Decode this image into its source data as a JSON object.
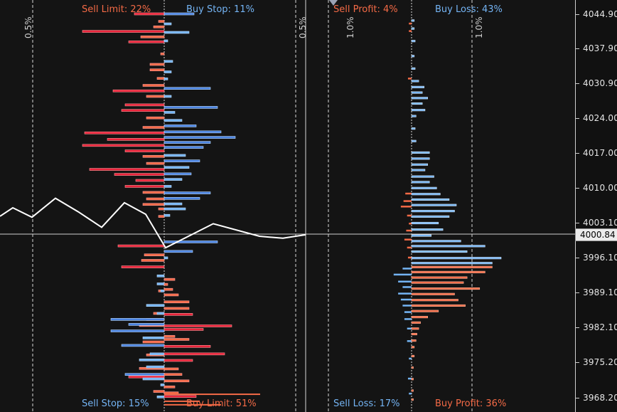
{
  "colors": {
    "sell": "#f46a46",
    "sell_dark": "#e8223a",
    "buy": "#74b4f4",
    "buy_dark": "#4a82e0",
    "price_line": "#ffffff",
    "axis_text": "#e6e6e6"
  },
  "orders": {
    "sell_limit_label": "Sell Limit: 22%",
    "buy_stop_label": "Buy Stop: 11%",
    "sell_stop_label": "Sell Stop: 15%",
    "buy_limit_label": "Buy Limit: 51%"
  },
  "positions": {
    "sell_profit_label": "Sell Profit: 4%",
    "buy_loss_label": "Buy Loss: 43%",
    "sell_loss_label": "Sell Loss: 17%",
    "buy_profit_label": "Buy Profit: 36%"
  },
  "percent_guides": [
    "0.5%",
    "0.5%",
    "1.0%",
    "1.0%"
  ],
  "price_axis": {
    "ticks": [
      "4044.90",
      "4037.90",
      "4030.90",
      "4024.00",
      "4017.00",
      "4010.00",
      "4003.10",
      "3996.10",
      "3989.10",
      "3982.10",
      "3975.20",
      "3968.20"
    ],
    "current_price": "4000.84"
  },
  "price_history": [
    {
      "price": 4004.5
    },
    {
      "price": 4006.2
    },
    {
      "price": 4004.3
    },
    {
      "price": 4008.1
    },
    {
      "price": 4005.4
    },
    {
      "price": 4002.3
    },
    {
      "price": 4007.2
    },
    {
      "price": 4004.9
    },
    {
      "price": 3998.2
    },
    {
      "price": 4003.0
    },
    {
      "price": 4000.5
    },
    {
      "price": 4000.1
    },
    {
      "price": 4000.8
    }
  ],
  "chart_data": {
    "type": "bar",
    "title": "",
    "price_range": [
      3966.7,
      4046.6
    ],
    "order_book": {
      "sell": [
        {
          "price": 4044.9,
          "pct": 0.42
        },
        {
          "price": 4043.4,
          "pct": 0.08
        },
        {
          "price": 4042.3,
          "pct": 0.15
        },
        {
          "price": 4041.4,
          "pct": 1.15
        },
        {
          "price": 4040.3,
          "pct": 0.33
        },
        {
          "price": 4039.3,
          "pct": 0.5
        },
        {
          "price": 4036.9,
          "pct": 0.05
        },
        {
          "price": 4034.8,
          "pct": 0.2
        },
        {
          "price": 4033.7,
          "pct": 0.2
        },
        {
          "price": 4032.0,
          "pct": 0.1
        },
        {
          "price": 4030.6,
          "pct": 0.3
        },
        {
          "price": 4029.5,
          "pct": 0.72
        },
        {
          "price": 4028.4,
          "pct": 0.25
        },
        {
          "price": 4026.7,
          "pct": 0.55
        },
        {
          "price": 4025.6,
          "pct": 0.6
        },
        {
          "price": 4024.1,
          "pct": 0.25
        },
        {
          "price": 4022.2,
          "pct": 0.3
        },
        {
          "price": 4021.1,
          "pct": 1.12
        },
        {
          "price": 4019.8,
          "pct": 0.8
        },
        {
          "price": 4018.6,
          "pct": 1.15
        },
        {
          "price": 4017.5,
          "pct": 0.55
        },
        {
          "price": 4016.4,
          "pct": 0.3
        },
        {
          "price": 4015.0,
          "pct": 0.25
        },
        {
          "price": 4013.8,
          "pct": 1.05
        },
        {
          "price": 4012.8,
          "pct": 0.7
        },
        {
          "price": 4011.6,
          "pct": 0.4
        },
        {
          "price": 4010.4,
          "pct": 0.55
        },
        {
          "price": 4009.2,
          "pct": 0.3
        },
        {
          "price": 4007.9,
          "pct": 0.25
        },
        {
          "price": 4006.8,
          "pct": 0.3
        },
        {
          "price": 4005.9,
          "pct": 0.08
        },
        {
          "price": 4004.4,
          "pct": 0.08
        },
        {
          "price": 3998.5,
          "pct": 0.65
        },
        {
          "price": 3996.7,
          "pct": 0.28
        },
        {
          "price": 3995.6,
          "pct": 0.32
        },
        {
          "price": 3994.3,
          "pct": 0.6
        },
        {
          "price": 3989.5,
          "pct": 0.08
        },
        {
          "price": 3985.0,
          "pct": 0.15
        },
        {
          "price": 3983.8,
          "pct": 0.25
        },
        {
          "price": 3982.6,
          "pct": 0.35
        },
        {
          "price": 3979.3,
          "pct": 0.3
        },
        {
          "price": 3976.7,
          "pct": 0.25
        },
        {
          "price": 3974.0,
          "pct": 0.35
        },
        {
          "price": 3972.3,
          "pct": 0.5
        },
        {
          "price": 3969.4,
          "pct": 0.15
        }
      ],
      "buy": [
        {
          "price": 4044.9,
          "pct": 0.42
        },
        {
          "price": 4042.9,
          "pct": 0.1
        },
        {
          "price": 4041.2,
          "pct": 0.35
        },
        {
          "price": 4039.5,
          "pct": 0.05
        },
        {
          "price": 4035.4,
          "pct": 0.12
        },
        {
          "price": 4033.3,
          "pct": 0.1
        },
        {
          "price": 4031.9,
          "pct": 0.05
        },
        {
          "price": 4030.0,
          "pct": 0.65
        },
        {
          "price": 4028.4,
          "pct": 0.1
        },
        {
          "price": 4026.2,
          "pct": 0.75
        },
        {
          "price": 4025.2,
          "pct": 0.15
        },
        {
          "price": 4023.6,
          "pct": 0.25
        },
        {
          "price": 4022.5,
          "pct": 0.45
        },
        {
          "price": 4021.3,
          "pct": 0.8
        },
        {
          "price": 4020.2,
          "pct": 1.0
        },
        {
          "price": 4019.2,
          "pct": 0.65
        },
        {
          "price": 4018.2,
          "pct": 0.55
        },
        {
          "price": 4016.6,
          "pct": 0.3
        },
        {
          "price": 4015.5,
          "pct": 0.5
        },
        {
          "price": 4014.2,
          "pct": 0.35
        },
        {
          "price": 4012.9,
          "pct": 0.38
        },
        {
          "price": 4011.8,
          "pct": 0.25
        },
        {
          "price": 4010.4,
          "pct": 0.1
        },
        {
          "price": 4009.1,
          "pct": 0.65
        },
        {
          "price": 4008.0,
          "pct": 0.5
        },
        {
          "price": 4006.9,
          "pct": 0.25
        },
        {
          "price": 4005.9,
          "pct": 0.3
        },
        {
          "price": 4004.6,
          "pct": 0.08
        },
        {
          "price": 3999.3,
          "pct": 0.75
        },
        {
          "price": 3997.4,
          "pct": 0.4
        },
        {
          "price": 3996.1,
          "pct": 0.05
        }
      ],
      "sell_lower": [
        {
          "price": 3991.8,
          "pct": 0.15
        },
        {
          "price": 3990.8,
          "pct": 0.05
        },
        {
          "price": 3989.8,
          "pct": 0.12
        },
        {
          "price": 3988.7,
          "pct": 0.2
        },
        {
          "price": 3987.3,
          "pct": 0.35
        },
        {
          "price": 3986.0,
          "pct": 0.35
        },
        {
          "price": 3984.8,
          "pct": 0.4
        },
        {
          "price": 3982.5,
          "pct": 0.95
        },
        {
          "price": 3981.8,
          "pct": 0.55
        },
        {
          "price": 3980.4,
          "pct": 0.15
        },
        {
          "price": 3979.8,
          "pct": 0.35
        },
        {
          "price": 3978.4,
          "pct": 0.65
        },
        {
          "price": 3976.9,
          "pct": 0.85
        },
        {
          "price": 3975.6,
          "pct": 0.4
        },
        {
          "price": 3973.9,
          "pct": 0.2
        },
        {
          "price": 3972.8,
          "pct": 0.25
        },
        {
          "price": 3971.5,
          "pct": 0.35
        },
        {
          "price": 3970.3,
          "pct": 0.15
        },
        {
          "price": 3969.1,
          "pct": 0.2
        },
        {
          "price": 3968.4,
          "pct": 0.45
        }
      ],
      "sell_lower_extra": [
        {
          "price": 3968.9,
          "pct": 1.35
        },
        {
          "price": 3967.5,
          "pct": 0.5
        },
        {
          "price": 3966.8,
          "pct": 0.8
        }
      ],
      "buy_lower": [
        {
          "price": 3992.5,
          "pct": 0.1
        },
        {
          "price": 3990.9,
          "pct": 0.1
        },
        {
          "price": 3989.5,
          "pct": 0.05
        },
        {
          "price": 3986.6,
          "pct": 0.25
        },
        {
          "price": 3985.0,
          "pct": 0.1
        },
        {
          "price": 3983.8,
          "pct": 0.75
        },
        {
          "price": 3982.8,
          "pct": 0.5
        },
        {
          "price": 3981.5,
          "pct": 0.75
        },
        {
          "price": 3980.1,
          "pct": 0.3
        },
        {
          "price": 3978.6,
          "pct": 0.6
        },
        {
          "price": 3976.9,
          "pct": 0.2
        },
        {
          "price": 3975.7,
          "pct": 0.35
        },
        {
          "price": 3974.3,
          "pct": 0.25
        },
        {
          "price": 3972.8,
          "pct": 0.55
        },
        {
          "price": 3971.9,
          "pct": 0.3
        },
        {
          "price": 3970.7,
          "pct": 0.05
        },
        {
          "price": 3968.3,
          "pct": 0.1
        }
      ]
    },
    "position_book": {
      "buy": [
        {
          "price": 4043.6,
          "pct": 0.03
        },
        {
          "price": 4042.0,
          "pct": 0.03
        },
        {
          "price": 4039.5,
          "pct": 0.04
        },
        {
          "price": 4036.5,
          "pct": 0.03
        },
        {
          "price": 4034.0,
          "pct": 0.04
        },
        {
          "price": 4031.5,
          "pct": 0.08
        },
        {
          "price": 4030.3,
          "pct": 0.14
        },
        {
          "price": 4029.2,
          "pct": 0.12
        },
        {
          "price": 4028.1,
          "pct": 0.18
        },
        {
          "price": 4027.0,
          "pct": 0.12
        },
        {
          "price": 4025.7,
          "pct": 0.15
        },
        {
          "price": 4024.5,
          "pct": 0.05
        },
        {
          "price": 4022.0,
          "pct": 0.04
        },
        {
          "price": 4019.5,
          "pct": 0.05
        },
        {
          "price": 4017.2,
          "pct": 0.2
        },
        {
          "price": 4016.0,
          "pct": 0.2
        },
        {
          "price": 4014.8,
          "pct": 0.18
        },
        {
          "price": 4013.7,
          "pct": 0.15
        },
        {
          "price": 4012.4,
          "pct": 0.25
        },
        {
          "price": 4011.3,
          "pct": 0.2
        },
        {
          "price": 4010.1,
          "pct": 0.28
        },
        {
          "price": 4008.9,
          "pct": 0.32
        },
        {
          "price": 4007.8,
          "pct": 0.42
        },
        {
          "price": 4006.7,
          "pct": 0.5
        },
        {
          "price": 4005.5,
          "pct": 0.48
        },
        {
          "price": 4004.4,
          "pct": 0.42
        },
        {
          "price": 4003.1,
          "pct": 0.3
        },
        {
          "price": 4001.8,
          "pct": 0.35
        },
        {
          "price": 4000.6,
          "pct": 0.22
        },
        {
          "price": 3999.5,
          "pct": 0.55
        },
        {
          "price": 3998.5,
          "pct": 0.82
        },
        {
          "price": 3997.4,
          "pct": 0.62
        },
        {
          "price": 3996.1,
          "pct": 1.0
        },
        {
          "price": 3995.1,
          "pct": 0.9
        }
      ],
      "sell": [
        {
          "price": 4043.0,
          "pct": 0.03
        },
        {
          "price": 4041.5,
          "pct": 0.03
        },
        {
          "price": 4032.0,
          "pct": 0.04
        },
        {
          "price": 4009.0,
          "pct": 0.07
        },
        {
          "price": 4007.5,
          "pct": 0.09
        },
        {
          "price": 4006.4,
          "pct": 0.12
        },
        {
          "price": 4004.6,
          "pct": 0.05
        },
        {
          "price": 4003.0,
          "pct": 0.03
        },
        {
          "price": 4001.6,
          "pct": 0.06
        },
        {
          "price": 3999.8,
          "pct": 0.08
        },
        {
          "price": 3998.2,
          "pct": 0.05
        },
        {
          "price": 3996.2,
          "pct": 0.04
        },
        {
          "price": 3994.0,
          "pct": 0.1
        },
        {
          "price": 3992.8,
          "pct": 0.2
        },
        {
          "price": 3991.4,
          "pct": 0.15
        },
        {
          "price": 3990.3,
          "pct": 0.1
        },
        {
          "price": 3989.0,
          "pct": 0.15
        },
        {
          "price": 3987.8,
          "pct": 0.12
        },
        {
          "price": 3986.6,
          "pct": 0.1
        },
        {
          "price": 3985.3,
          "pct": 0.08
        },
        {
          "price": 3983.9,
          "pct": 0.08
        },
        {
          "price": 3982.0,
          "pct": 0.05
        },
        {
          "price": 3979.5,
          "pct": 0.05
        },
        {
          "price": 3976.0,
          "pct": 0.03
        },
        {
          "price": 3972.0,
          "pct": 0.04
        },
        {
          "price": 3969.0,
          "pct": 0.03
        }
      ],
      "buy_profit": [
        {
          "price": 3994.3,
          "pct": 0.9
        },
        {
          "price": 3993.3,
          "pct": 0.82
        },
        {
          "price": 3992.2,
          "pct": 0.62
        },
        {
          "price": 3991.2,
          "pct": 0.58
        },
        {
          "price": 3990.0,
          "pct": 0.76
        },
        {
          "price": 3988.9,
          "pct": 0.48
        },
        {
          "price": 3987.7,
          "pct": 0.52
        },
        {
          "price": 3986.6,
          "pct": 0.6
        },
        {
          "price": 3985.5,
          "pct": 0.3
        },
        {
          "price": 3984.3,
          "pct": 0.18
        },
        {
          "price": 3983.2,
          "pct": 0.1
        },
        {
          "price": 3982.0,
          "pct": 0.08
        },
        {
          "price": 3980.9,
          "pct": 0.06
        },
        {
          "price": 3979.6,
          "pct": 0.05
        },
        {
          "price": 3978.3,
          "pct": 0.03
        },
        {
          "price": 3976.5,
          "pct": 0.03
        },
        {
          "price": 3974.2,
          "pct": 0.02
        },
        {
          "price": 3971.9,
          "pct": 0.02
        },
        {
          "price": 3969.6,
          "pct": 0.02
        },
        {
          "price": 3967.8,
          "pct": 0.02
        }
      ]
    }
  }
}
